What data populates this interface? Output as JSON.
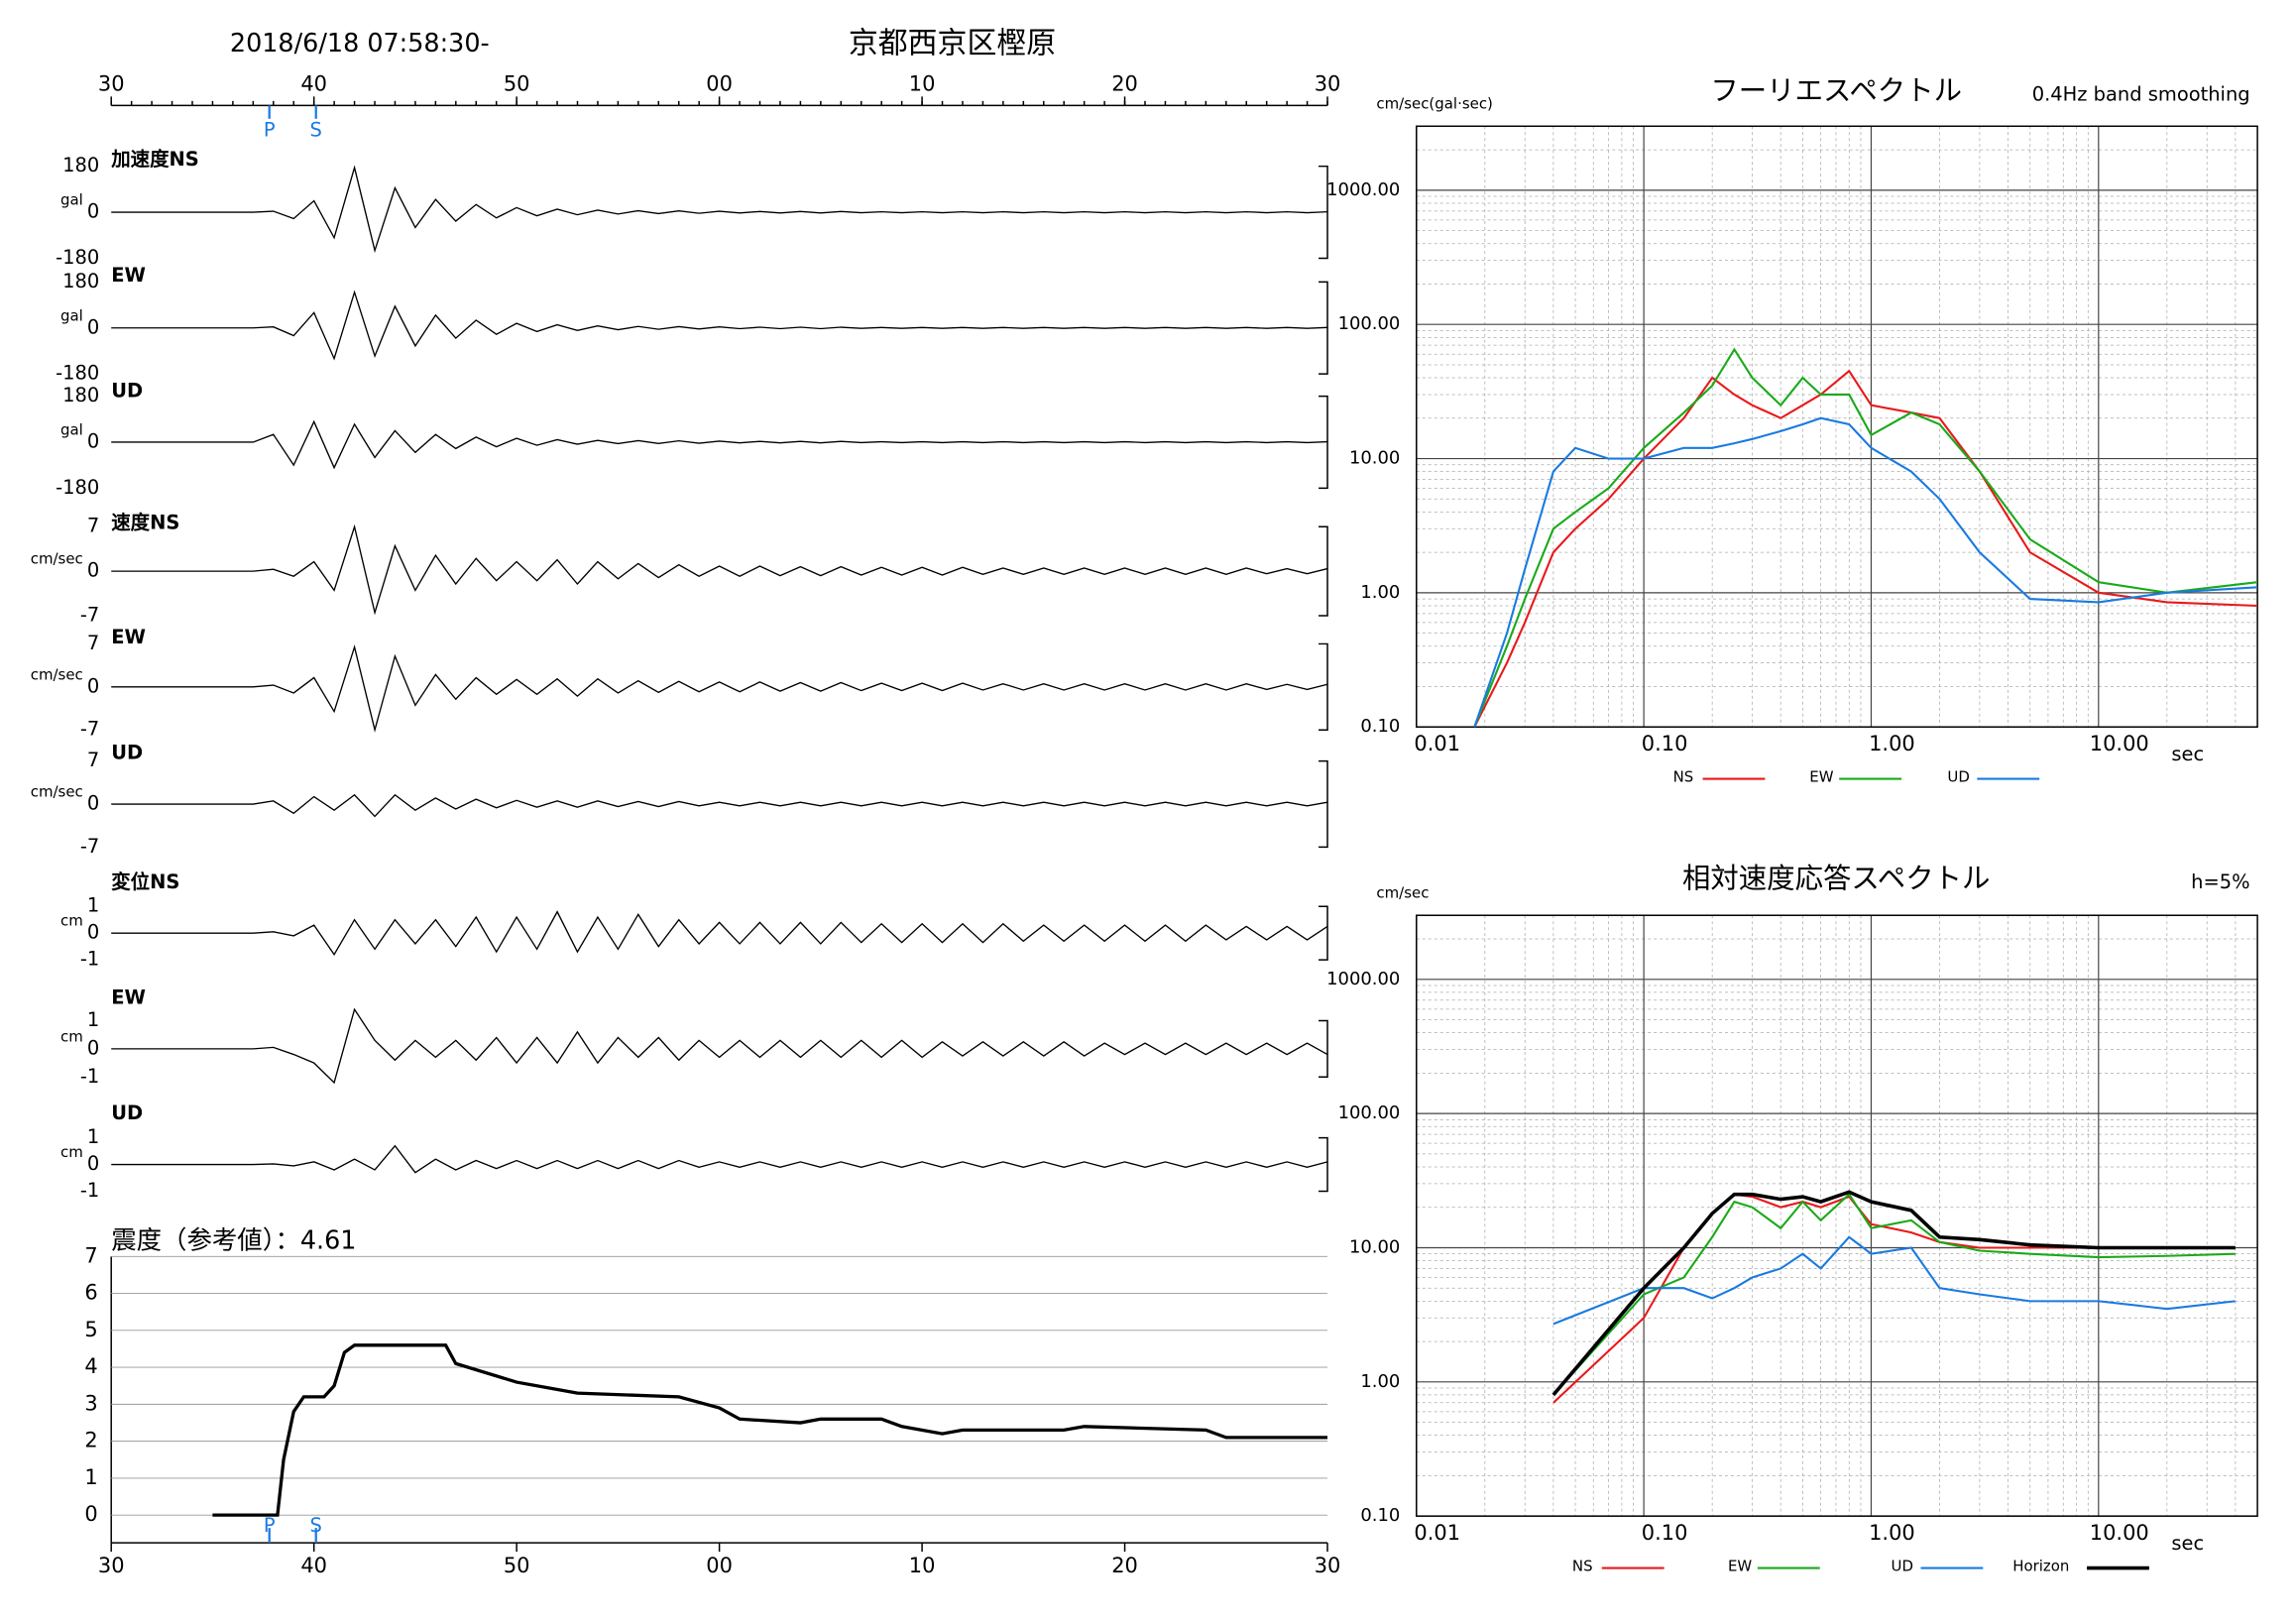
{
  "header": {
    "datetime": "2018/6/18 07:58:30-",
    "station": "京都西京区樫原"
  },
  "chart_data": [
    {
      "type": "waveform",
      "xlim": [
        30,
        90
      ],
      "xticks": [
        30,
        40,
        50,
        {
          "value": 60,
          "label": "00"
        },
        {
          "value": 70,
          "label": "10"
        },
        {
          "value": 80,
          "label": "20"
        },
        {
          "value": 90,
          "label": "30"
        }
      ],
      "phases": [
        {
          "label": "P",
          "x": 37.8
        },
        {
          "label": "S",
          "x": 40.1
        }
      ],
      "x": [
        30,
        31,
        32,
        33,
        34,
        35,
        36,
        37,
        38,
        39,
        40,
        41,
        42,
        43,
        44,
        45,
        46,
        47,
        48,
        49,
        50,
        51,
        52,
        53,
        54,
        55,
        56,
        57,
        58,
        59,
        60,
        61,
        62,
        63,
        64,
        65,
        66,
        67,
        68,
        69,
        70,
        71,
        72,
        73,
        74,
        75,
        76,
        77,
        78,
        79,
        80,
        81,
        82,
        83,
        84,
        85,
        86,
        87,
        88,
        89,
        90
      ],
      "traces": [
        {
          "label": "加速度NS",
          "unit": "gal",
          "ylim": [
            -180,
            180
          ],
          "yticks": [
            180,
            0,
            -180
          ],
          "values": [
            0,
            0,
            0,
            0,
            0,
            0,
            0,
            0,
            4,
            -25,
            45,
            -100,
            175,
            -150,
            95,
            -60,
            50,
            -35,
            30,
            -22,
            18,
            -14,
            12,
            -10,
            8,
            -7,
            6,
            -5,
            5,
            -4,
            4,
            -3,
            3,
            -3,
            3,
            -3,
            3,
            -2,
            2,
            -2,
            2,
            -2,
            2,
            -2,
            2,
            -2,
            2,
            -2,
            2,
            -2,
            2,
            -2,
            2,
            -2,
            2,
            -2,
            2,
            -2,
            2,
            -2,
            2
          ]
        },
        {
          "label": "EW",
          "unit": "gal",
          "ylim": [
            -180,
            180
          ],
          "yticks": [
            180,
            0,
            -180
          ],
          "values": [
            0,
            0,
            0,
            0,
            0,
            0,
            0,
            0,
            4,
            -30,
            60,
            -120,
            140,
            -110,
            85,
            -70,
            50,
            -40,
            30,
            -25,
            18,
            -14,
            12,
            -10,
            8,
            -7,
            6,
            -5,
            5,
            -4,
            4,
            -3,
            3,
            -3,
            3,
            -3,
            3,
            -2,
            2,
            -2,
            2,
            -2,
            2,
            -2,
            2,
            -2,
            2,
            -2,
            2,
            -2,
            2,
            -2,
            2,
            -2,
            2,
            -2,
            2,
            -2,
            2,
            -2,
            2
          ]
        },
        {
          "label": "UD",
          "unit": "gal",
          "ylim": [
            -180,
            180
          ],
          "yticks": [
            180,
            0,
            -180
          ],
          "values": [
            0,
            0,
            0,
            0,
            0,
            0,
            0,
            0,
            30,
            -90,
            80,
            -100,
            70,
            -60,
            45,
            -40,
            30,
            -25,
            20,
            -18,
            15,
            -12,
            10,
            -8,
            7,
            -6,
            6,
            -5,
            5,
            -4,
            4,
            -3,
            3,
            -3,
            3,
            -3,
            3,
            -2,
            2,
            -2,
            2,
            -2,
            2,
            -2,
            2,
            -2,
            2,
            -2,
            2,
            -2,
            2,
            -2,
            2,
            -2,
            2,
            -2,
            2,
            -2,
            2,
            -2,
            2
          ]
        },
        {
          "label": "速度NS",
          "unit": "cm/sec",
          "ylim": [
            -7,
            7
          ],
          "yticks": [
            7,
            0,
            -7
          ],
          "values": [
            0,
            0,
            0,
            0,
            0,
            0,
            0,
            0,
            0.3,
            -0.8,
            1.5,
            -3,
            7,
            -6.5,
            4,
            -3,
            2.5,
            -2,
            2,
            -1.5,
            1.5,
            -1.5,
            1.8,
            -2,
            1.5,
            -1.2,
            1.2,
            -1,
            1,
            -0.8,
            0.8,
            -0.8,
            0.8,
            -0.7,
            0.7,
            -0.7,
            0.7,
            -0.6,
            0.6,
            -0.6,
            0.6,
            -0.6,
            0.6,
            -0.5,
            0.5,
            -0.5,
            0.5,
            -0.5,
            0.5,
            -0.5,
            0.5,
            -0.5,
            0.5,
            -0.5,
            0.5,
            -0.5,
            0.5,
            -0.4,
            0.4,
            -0.4,
            0.4
          ]
        },
        {
          "label": "EW",
          "unit": "cm/sec",
          "ylim": [
            -7,
            7
          ],
          "yticks": [
            7,
            0,
            -7
          ],
          "values": [
            0,
            0,
            0,
            0,
            0,
            0,
            0,
            0,
            0.3,
            -1,
            1.5,
            -4,
            6.5,
            -7,
            5,
            -3,
            2,
            -2,
            1.5,
            -1.2,
            1.2,
            -1.2,
            1.3,
            -1.5,
            1.3,
            -1,
            1,
            -0.9,
            0.9,
            -0.8,
            0.8,
            -0.8,
            0.8,
            -0.7,
            0.7,
            -0.7,
            0.7,
            -0.6,
            0.6,
            -0.6,
            0.6,
            -0.6,
            0.6,
            -0.5,
            0.5,
            -0.5,
            0.5,
            -0.5,
            0.5,
            -0.5,
            0.5,
            -0.5,
            0.5,
            -0.5,
            0.5,
            -0.5,
            0.5,
            -0.4,
            0.4,
            -0.4,
            0.4
          ]
        },
        {
          "label": "UD",
          "unit": "cm/sec",
          "ylim": [
            -7,
            7
          ],
          "yticks": [
            7,
            0,
            -7
          ],
          "values": [
            0,
            0,
            0,
            0,
            0,
            0,
            0,
            0,
            0.5,
            -1.5,
            1.2,
            -1,
            1.5,
            -2,
            1.5,
            -1,
            1,
            -0.8,
            0.8,
            -0.6,
            0.6,
            -0.5,
            0.5,
            -0.5,
            0.5,
            -0.4,
            0.4,
            -0.4,
            0.4,
            -0.3,
            0.3,
            -0.3,
            0.3,
            -0.3,
            0.3,
            -0.3,
            0.3,
            -0.3,
            0.3,
            -0.3,
            0.3,
            -0.3,
            0.3,
            -0.3,
            0.3,
            -0.3,
            0.3,
            -0.3,
            0.3,
            -0.3,
            0.3,
            -0.3,
            0.3,
            -0.3,
            0.3,
            -0.3,
            0.3,
            -0.3,
            0.3,
            -0.3,
            0.3
          ]
        },
        {
          "label": "変位NS",
          "unit": "cm",
          "ylim": [
            -1,
            1
          ],
          "yticks": [
            1,
            0,
            -1
          ],
          "values": [
            0,
            0,
            0,
            0,
            0,
            0,
            0,
            0,
            0.05,
            -0.1,
            0.3,
            -0.8,
            0.5,
            -0.6,
            0.5,
            -0.4,
            0.5,
            -0.5,
            0.6,
            -0.7,
            0.6,
            -0.6,
            0.8,
            -0.7,
            0.6,
            -0.6,
            0.7,
            -0.5,
            0.5,
            -0.4,
            0.4,
            -0.4,
            0.4,
            -0.4,
            0.4,
            -0.4,
            0.4,
            -0.35,
            0.35,
            -0.35,
            0.35,
            -0.35,
            0.35,
            -0.35,
            0.35,
            -0.3,
            0.3,
            -0.3,
            0.3,
            -0.3,
            0.3,
            -0.3,
            0.3,
            -0.3,
            0.3,
            -0.25,
            0.25,
            -0.25,
            0.25,
            -0.25,
            0.25
          ]
        },
        {
          "label": "EW",
          "unit": "cm",
          "ylim": [
            -1,
            1
          ],
          "yticks": [
            1,
            0,
            -1
          ],
          "values": [
            0,
            0,
            0,
            0,
            0,
            0,
            0,
            0,
            0.05,
            -0.2,
            -0.5,
            -1.2,
            1.4,
            0.3,
            -0.4,
            0.3,
            -0.3,
            0.3,
            -0.4,
            0.4,
            -0.5,
            0.4,
            -0.5,
            0.6,
            -0.5,
            0.4,
            -0.3,
            0.4,
            -0.4,
            0.3,
            -0.3,
            0.3,
            -0.3,
            0.3,
            -0.3,
            0.3,
            -0.3,
            0.3,
            -0.3,
            0.3,
            -0.3,
            0.25,
            -0.25,
            0.25,
            -0.25,
            0.25,
            -0.25,
            0.25,
            -0.25,
            0.2,
            -0.2,
            0.2,
            -0.2,
            0.2,
            -0.2,
            0.2,
            -0.2,
            0.2,
            -0.2,
            0.2,
            -0.2
          ]
        },
        {
          "label": "UD",
          "unit": "cm",
          "ylim": [
            -1,
            1
          ],
          "yticks": [
            1,
            0,
            -1
          ],
          "values": [
            0,
            0,
            0,
            0,
            0,
            0,
            0,
            0,
            0.02,
            -0.05,
            0.1,
            -0.2,
            0.2,
            -0.2,
            0.7,
            -0.3,
            0.2,
            -0.2,
            0.15,
            -0.15,
            0.15,
            -0.15,
            0.15,
            -0.15,
            0.15,
            -0.15,
            0.15,
            -0.15,
            0.15,
            -0.1,
            0.1,
            -0.1,
            0.1,
            -0.1,
            0.1,
            -0.1,
            0.1,
            -0.1,
            0.1,
            -0.1,
            0.1,
            -0.1,
            0.1,
            -0.1,
            0.1,
            -0.1,
            0.1,
            -0.1,
            0.1,
            -0.1,
            0.1,
            -0.1,
            0.1,
            -0.1,
            0.1,
            -0.1,
            0.1,
            -0.1,
            0.1,
            -0.1,
            0.1
          ]
        }
      ]
    },
    {
      "type": "line",
      "title": "震度（参考値）：4.61",
      "xlim": [
        30,
        90
      ],
      "xticks": [
        30,
        40,
        50,
        {
          "value": 60,
          "label": "00"
        },
        {
          "value": 70,
          "label": "10"
        },
        {
          "value": 80,
          "label": "20"
        },
        {
          "value": 90,
          "label": "30"
        }
      ],
      "ylim": [
        -0.75,
        7
      ],
      "yticks": [
        0,
        1,
        2,
        3,
        4,
        5,
        6,
        7
      ],
      "phases": [
        {
          "label": "P",
          "x": 37.8
        },
        {
          "label": "S",
          "x": 40.1
        }
      ],
      "x": [
        35,
        38.2,
        38.5,
        39,
        39.5,
        40.5,
        41,
        41.5,
        42,
        46.5,
        47,
        50,
        53,
        58,
        60,
        61,
        64,
        65,
        68,
        69,
        71,
        72,
        77,
        78,
        84,
        85,
        90
      ],
      "values": [
        0,
        0,
        1.5,
        2.8,
        3.2,
        3.2,
        3.5,
        4.4,
        4.6,
        4.6,
        4.1,
        3.6,
        3.3,
        3.2,
        2.9,
        2.6,
        2.5,
        2.6,
        2.6,
        2.4,
        2.2,
        2.3,
        2.3,
        2.4,
        2.3,
        2.1,
        2.1
      ],
      "color": "#000000"
    },
    {
      "type": "line",
      "title": "フーリエスペクトル",
      "subtitle": "0.4Hz band smoothing",
      "y_label": "cm/sec(gal·sec)",
      "x_label": "sec",
      "xscale": "log",
      "yscale": "log",
      "xlim": [
        0.01,
        50
      ],
      "ylim": [
        0.1,
        3000
      ],
      "xticks": [
        0.01,
        {
          "value": 0.1,
          "label": "0.10"
        },
        {
          "value": 1,
          "label": "1.00"
        },
        {
          "value": 10,
          "label": "10.00"
        }
      ],
      "yticks": [
        {
          "value": 0.1,
          "label": "0.10"
        },
        {
          "value": 1,
          "label": "1.00"
        },
        {
          "value": 10,
          "label": "10.00"
        },
        {
          "value": 100,
          "label": "100.00"
        },
        {
          "value": 1000,
          "label": "1000.00"
        }
      ],
      "x": [
        0.018,
        0.025,
        0.03,
        0.04,
        0.05,
        0.07,
        0.1,
        0.15,
        0.2,
        0.25,
        0.3,
        0.4,
        0.5,
        0.6,
        0.8,
        1,
        1.5,
        2,
        3,
        5,
        10,
        20,
        50
      ],
      "series": [
        {
          "name": "NS",
          "color": "#e8191c",
          "values": [
            0.1,
            0.3,
            0.6,
            2,
            3,
            5,
            10,
            20,
            40,
            30,
            25,
            20,
            25,
            30,
            45,
            25,
            22,
            20,
            8,
            2,
            1,
            0.85,
            0.8
          ]
        },
        {
          "name": "EW",
          "color": "#1aaa1a",
          "values": [
            0.1,
            0.4,
            0.9,
            3,
            4,
            6,
            12,
            22,
            35,
            65,
            40,
            25,
            40,
            30,
            30,
            15,
            22,
            18,
            8,
            2.5,
            1.2,
            1,
            1.2
          ]
        },
        {
          "name": "UD",
          "color": "#1a7ae0",
          "values": [
            0.1,
            0.5,
            1.5,
            8,
            12,
            10,
            10,
            12,
            12,
            13,
            14,
            16,
            18,
            20,
            18,
            12,
            8,
            5,
            2,
            0.9,
            0.85,
            1,
            1.1
          ]
        }
      ]
    },
    {
      "type": "line",
      "title": "相対速度応答スペクトル",
      "subtitle": "h=5%",
      "y_label": "cm/sec",
      "x_label": "sec",
      "xscale": "log",
      "yscale": "log",
      "xlim": [
        0.01,
        50
      ],
      "ylim": [
        0.1,
        3000
      ],
      "xticks": [
        0.01,
        {
          "value": 0.1,
          "label": "0.10"
        },
        {
          "value": 1,
          "label": "1.00"
        },
        {
          "value": 10,
          "label": "10.00"
        }
      ],
      "yticks": [
        {
          "value": 0.1,
          "label": "0.10"
        },
        {
          "value": 1,
          "label": "1.00"
        },
        {
          "value": 10,
          "label": "10.00"
        },
        {
          "value": 100,
          "label": "100.00"
        },
        {
          "value": 1000,
          "label": "1000.00"
        }
      ],
      "x": [
        0.04,
        0.1,
        0.15,
        0.2,
        0.25,
        0.3,
        0.4,
        0.5,
        0.6,
        0.8,
        1,
        1.5,
        2,
        3,
        5,
        10,
        20,
        40
      ],
      "series": [
        {
          "name": "NS",
          "color": "#e8191c",
          "values": [
            0.7,
            3,
            10,
            18,
            25,
            24,
            20,
            22,
            20,
            24,
            15,
            13,
            11,
            10,
            10,
            10,
            10,
            10
          ]
        },
        {
          "name": "EW",
          "color": "#1aaa1a",
          "values": [
            0.8,
            4.5,
            6,
            12,
            22,
            20,
            14,
            22,
            16,
            25,
            14,
            16,
            11,
            9.5,
            9,
            8.5,
            8.7,
            9
          ]
        },
        {
          "name": "UD",
          "color": "#1a7ae0",
          "values": [
            2.7,
            5,
            5,
            4.2,
            5,
            6,
            7,
            9,
            7,
            12,
            9,
            10,
            5,
            4.5,
            4,
            4,
            3.5,
            4
          ]
        },
        {
          "name": "Horizon",
          "color": "#000000",
          "values": [
            0.8,
            5,
            10,
            18,
            25,
            25,
            23,
            24,
            22,
            26,
            22,
            19,
            12,
            11.5,
            10.5,
            10,
            10,
            10
          ]
        }
      ]
    }
  ]
}
